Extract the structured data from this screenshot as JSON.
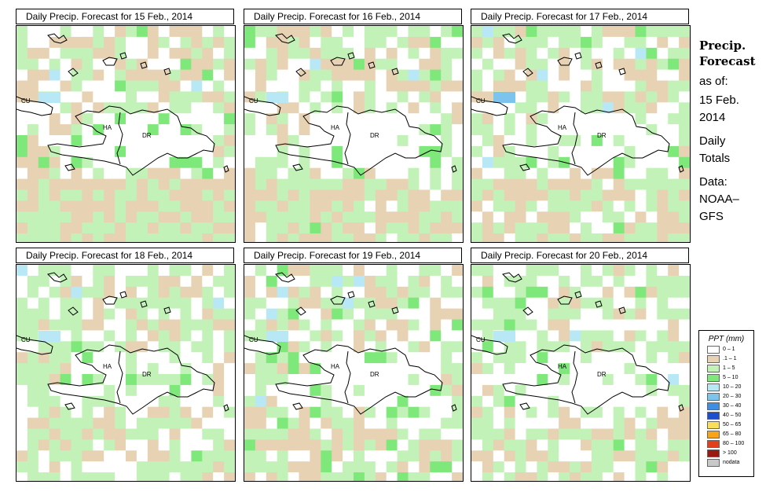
{
  "panels": [
    {
      "title": "Daily Precip. Forecast for  15 Feb., 2014",
      "seed": 11,
      "bias": 0.55
    },
    {
      "title": "Daily Precip. Forecast for  16 Feb., 2014",
      "seed": 23,
      "bias": 0.45
    },
    {
      "title": "Daily Precip. Forecast for  17 Feb., 2014",
      "seed": 37,
      "bias": 0.4
    },
    {
      "title": "Daily Precip. Forecast for  18 Feb., 2014",
      "seed": 41,
      "bias": 0.3
    },
    {
      "title": "Daily Precip. Forecast for  19 Feb., 2014",
      "seed": 53,
      "bias": 0.3
    },
    {
      "title": "Daily Precip. Forecast for  20 Feb., 2014",
      "seed": 67,
      "bias": 0.25
    }
  ],
  "map_labels": {
    "cu": "CU",
    "ha": "HA",
    "dr": "DR"
  },
  "side": {
    "title1": "Precip.",
    "title2": "Forecast",
    "asof": "as of:",
    "date1": "15 Feb.",
    "date2": "2014",
    "totals1": "Daily",
    "totals2": "Totals",
    "data1": "Data:",
    "data2": "NOAA–",
    "data3": "GFS"
  },
  "legend": {
    "title": "PPT (mm)",
    "items": [
      {
        "label": "0 – 1",
        "color": "#ffffff"
      },
      {
        "label": ".1 – 1",
        "color": "#e8d2b4"
      },
      {
        "label": "1 – 5",
        "color": "#c2f2b8"
      },
      {
        "label": "5 – 10",
        "color": "#7fe87a"
      },
      {
        "label": "10 – 20",
        "color": "#b8e8f6"
      },
      {
        "label": "20 – 30",
        "color": "#7cc4ee"
      },
      {
        "label": "30 – 40",
        "color": "#3d8ee4"
      },
      {
        "label": "40 – 50",
        "color": "#1b4fd2"
      },
      {
        "label": "50 – 65",
        "color": "#f7df5a"
      },
      {
        "label": "65 – 80",
        "color": "#f7a418"
      },
      {
        "label": "80 – 100",
        "color": "#e2401a"
      },
      {
        "label": "> 100",
        "color": "#9a1a12"
      },
      {
        "label": "nodata",
        "color": "#c8c8c8"
      }
    ]
  }
}
